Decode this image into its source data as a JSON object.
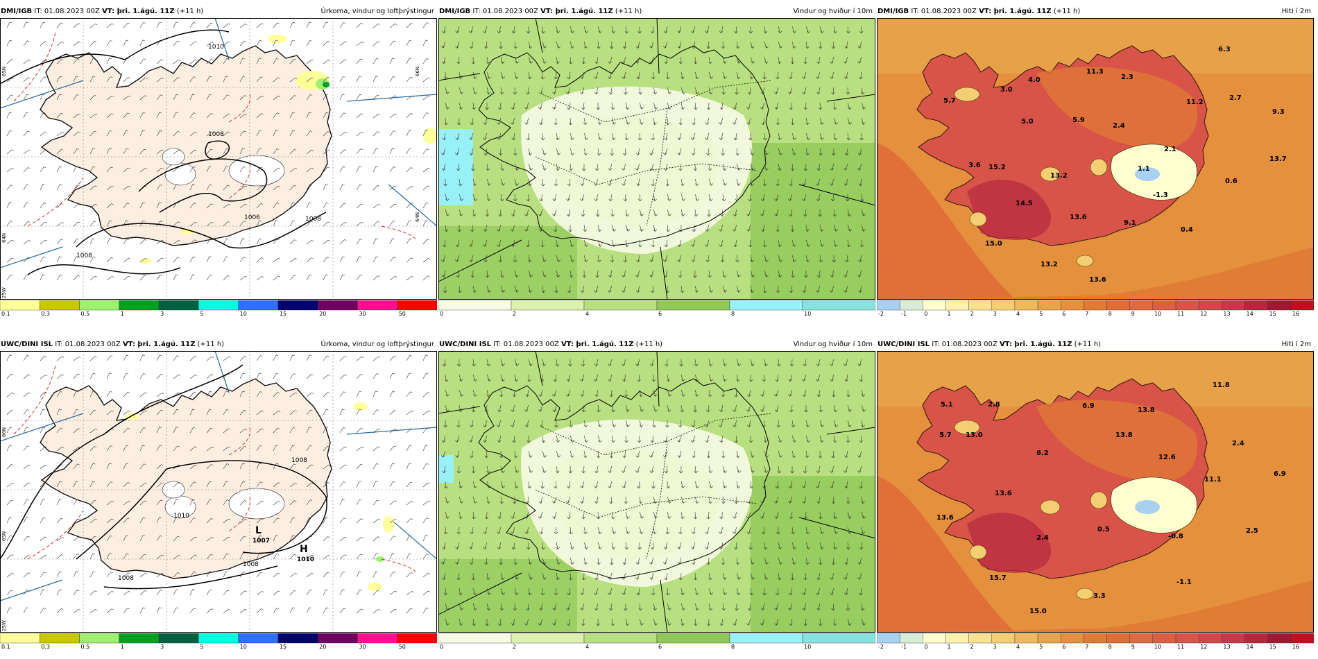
{
  "rows": [
    {
      "source": "DMI/IGB",
      "it_label": "IT: 01.08.2023 00Z",
      "vt_label": "VT: þri. 1.ágú. 11Z",
      "lead": "(+11 h)",
      "panels": [
        {
          "title": "Úrkoma, vindur og loftþrýstingur",
          "isobar_labels": [
            "1010",
            "1008",
            "1008",
            "1008",
            "1006"
          ],
          "side_labels": [
            "65N",
            "64N",
            "66N",
            "25W",
            "64N"
          ],
          "center_labels": []
        },
        {
          "title": "Vindur og hviður í 10m"
        },
        {
          "title": "Hiti í 2m",
          "temps": [
            "6.3",
            "11.3",
            "2.3",
            "4.0",
            "3.0",
            "5.7",
            "11.2",
            "2.7",
            "9.3",
            "5.0",
            "5.9",
            "2.4",
            "2.1",
            "13.7",
            "3.6",
            "15.2",
            "1.1",
            "13.2",
            "-1.3",
            "0.6",
            "14.5",
            "13.6",
            "9.1",
            "0.4",
            "15.0",
            "13.2",
            "13.6"
          ]
        }
      ]
    },
    {
      "source": "UWC/DINI ISL",
      "it_label": "IT: 01.08.2023 00Z",
      "vt_label": "VT: þri. 1.ágú. 11Z",
      "lead": "(+11 h)",
      "panels": [
        {
          "title": "Úrkoma, vindur og loftþrýstingur",
          "isobar_labels": [
            "1008",
            "1008",
            "1010",
            "1008"
          ],
          "side_labels": [
            "66N",
            "65N",
            "25W"
          ],
          "center_labels": [
            "L",
            "1007",
            "H",
            "1010"
          ]
        },
        {
          "title": "Vindur og hviður í 10m"
        },
        {
          "title": "Hiti í 2m",
          "temps": [
            "11.8",
            "5.1",
            "2.8",
            "6.9",
            "13.8",
            "5.7",
            "13.0",
            "13.8",
            "2.4",
            "6.2",
            "12.6",
            "6.9",
            "11.1",
            "13.6",
            "13.6",
            "2.4",
            "0.5",
            "-0.8",
            "2.5",
            "15.7",
            "-1.1",
            "3.3",
            "15.0"
          ]
        }
      ]
    }
  ],
  "legends": {
    "precip": {
      "ticks": [
        "0.1",
        "0.3",
        "0.5",
        "1",
        "3",
        "5",
        "10",
        "15",
        "20",
        "30",
        "50"
      ],
      "colors": [
        "#ffff99",
        "#c8c800",
        "#a0f070",
        "#00a020",
        "#006040",
        "#00ffe0",
        "#3070ff",
        "#000070",
        "#700060",
        "#ff1090",
        "#ff0000"
      ]
    },
    "wind": {
      "ticks": [
        "0",
        "2",
        "4",
        "6",
        "8",
        "10"
      ],
      "colors": [
        "#f7fbe6",
        "#dcf0b0",
        "#b8e080",
        "#90c858",
        "#98f0f8",
        "#88e0e0"
      ]
    },
    "temp": {
      "ticks": [
        "-2",
        "-1",
        "0",
        "1",
        "2",
        "3",
        "4",
        "5",
        "6",
        "7",
        "8",
        "9",
        "10",
        "11",
        "12",
        "13",
        "14",
        "15",
        "16"
      ],
      "colors": [
        "#a8d0f0",
        "#d8ecd8",
        "#ffffd0",
        "#fff2b0",
        "#fbe290",
        "#f4cf72",
        "#ecb95c",
        "#e8a44a",
        "#e4903c",
        "#e07a34",
        "#df6d36",
        "#dd6a40",
        "#dc5f44",
        "#d85448",
        "#d2474a",
        "#c8384a",
        "#b8263e",
        "#a01834",
        "#c01020"
      ]
    }
  }
}
